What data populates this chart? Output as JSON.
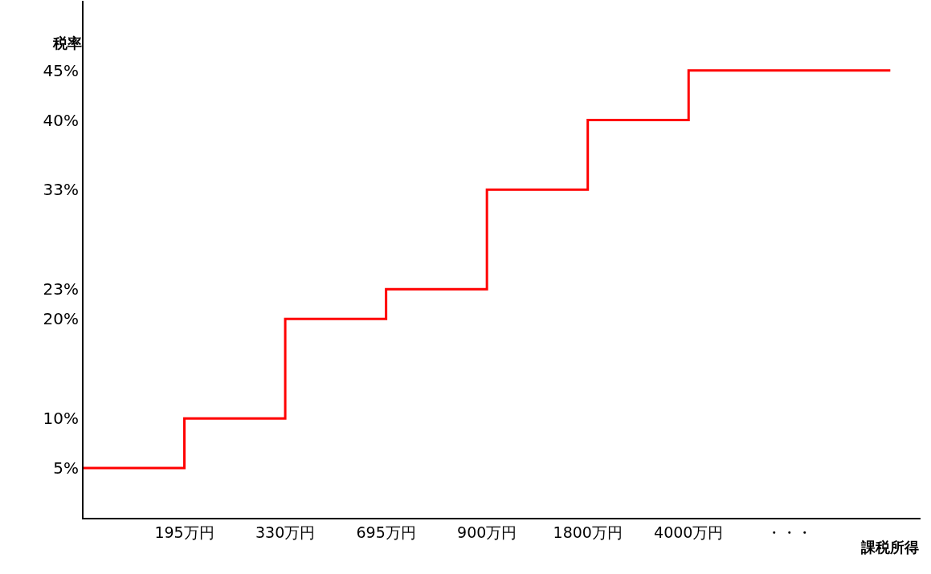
{
  "chart_data": {
    "type": "step",
    "xlabel": "課税所得",
    "ylabel": "税率",
    "categories": [
      null,
      "195万円",
      "330万円",
      "695万円",
      "900万円",
      "1800万円",
      "4000万円",
      "・・・",
      null
    ],
    "series": [
      {
        "color": "#ff0000",
        "values": [
          5,
          5,
          10,
          20,
          23,
          33,
          40,
          45,
          45
        ]
      }
    ],
    "ylim": [
      0,
      52
    ],
    "yticks": [
      {
        "value": 5,
        "label": "5%"
      },
      {
        "value": 10,
        "label": "10%"
      },
      {
        "value": 20,
        "label": "20%"
      },
      {
        "value": 23,
        "label": "23%"
      },
      {
        "value": 33,
        "label": "33%"
      },
      {
        "value": 40,
        "label": "40%"
      },
      {
        "value": 45,
        "label": "45%"
      }
    ],
    "line_style": "solid",
    "marker": "none"
  }
}
